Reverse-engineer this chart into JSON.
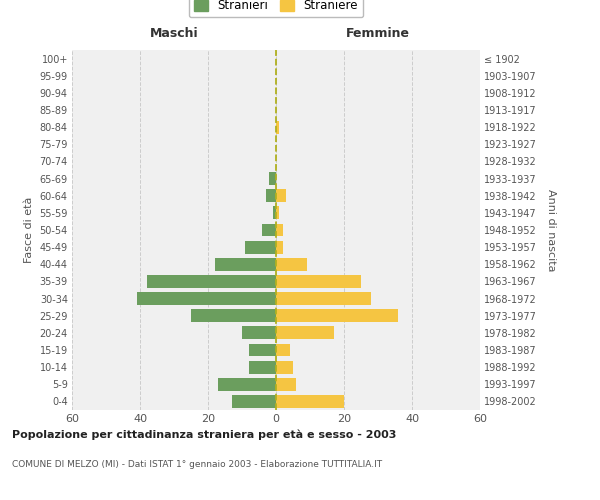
{
  "age_groups": [
    "0-4",
    "5-9",
    "10-14",
    "15-19",
    "20-24",
    "25-29",
    "30-34",
    "35-39",
    "40-44",
    "45-49",
    "50-54",
    "55-59",
    "60-64",
    "65-69",
    "70-74",
    "75-79",
    "80-84",
    "85-89",
    "90-94",
    "95-99",
    "100+"
  ],
  "birth_years": [
    "1998-2002",
    "1993-1997",
    "1988-1992",
    "1983-1987",
    "1978-1982",
    "1973-1977",
    "1968-1972",
    "1963-1967",
    "1958-1962",
    "1953-1957",
    "1948-1952",
    "1943-1947",
    "1938-1942",
    "1933-1937",
    "1928-1932",
    "1923-1927",
    "1918-1922",
    "1913-1917",
    "1908-1912",
    "1903-1907",
    "≤ 1902"
  ],
  "males": [
    13,
    17,
    8,
    8,
    10,
    25,
    41,
    38,
    18,
    9,
    4,
    1,
    3,
    2,
    0,
    0,
    0,
    0,
    0,
    0,
    0
  ],
  "females": [
    20,
    6,
    5,
    4,
    17,
    36,
    28,
    25,
    9,
    2,
    2,
    1,
    3,
    0,
    0,
    0,
    1,
    0,
    0,
    0,
    0
  ],
  "male_color": "#6b9e5e",
  "female_color": "#f5c542",
  "male_label": "Stranieri",
  "female_label": "Straniere",
  "title_maschi": "Maschi",
  "title_femmine": "Femmine",
  "ylabel_left": "Fasce di età",
  "ylabel_right": "Anni di nascita",
  "xlim": 60,
  "bg_color": "#f0f0f0",
  "grid_color": "#cccccc",
  "chart_title": "Popolazione per cittadinanza straniera per età e sesso - 2003",
  "chart_subtitle": "COMUNE DI MELZO (MI) - Dati ISTAT 1° gennaio 2003 - Elaborazione TUTTITALIA.IT",
  "dashed_line_color": "#b0b020"
}
